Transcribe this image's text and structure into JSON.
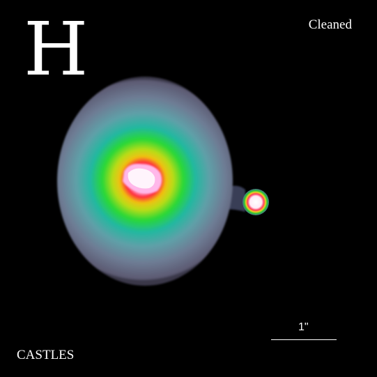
{
  "image": {
    "band_label": "H",
    "processing_label": "Cleaned",
    "scale_label": "1\"",
    "survey_label": "CASTLES"
  },
  "colors": {
    "background": "#000000",
    "text": "#ffffff",
    "halo_outer": "#5a5870",
    "halo_mid": "#2aa3a0",
    "ring_green": "#1ccf2a",
    "ring_yellow": "#e6e000",
    "ring_red": "#ff2a3c",
    "core_pink": "#ffb2e6"
  }
}
